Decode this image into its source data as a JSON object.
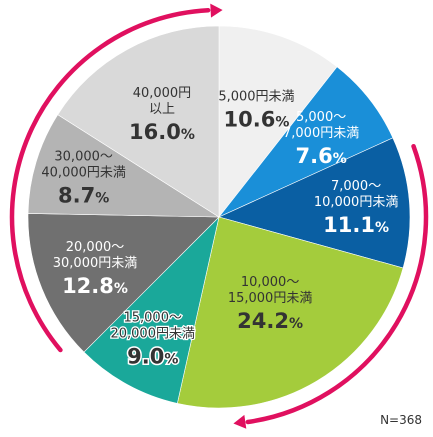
{
  "chart_data": {
    "type": "pie",
    "slices": [
      {
        "label_lines": [
          "5,000円未満"
        ],
        "value": 10.6,
        "color": "#f0f0f0",
        "text_color": "#333333",
        "stroke_text": false
      },
      {
        "label_lines": [
          "5,000～",
          "7,000円未満"
        ],
        "value": 7.6,
        "color": "#1a8fd8",
        "text_color": "#ffffff",
        "stroke_text": false
      },
      {
        "label_lines": [
          "7,000～",
          "10,000円未満"
        ],
        "value": 11.1,
        "color": "#0a5fa3",
        "text_color": "#ffffff",
        "stroke_text": false
      },
      {
        "label_lines": [
          "10,000～",
          "15,000円未満"
        ],
        "value": 24.2,
        "color": "#a4cc3c",
        "text_color": "#333333",
        "stroke_text": false
      },
      {
        "label_lines": [
          "15,000～",
          "20,000円未満"
        ],
        "value": 9.0,
        "color": "#1aa89a",
        "text_color": "#333333",
        "stroke_text": true
      },
      {
        "label_lines": [
          "20,000～",
          "30,000円未満"
        ],
        "value": 12.8,
        "color": "#707070",
        "text_color": "#ffffff",
        "stroke_text": false
      },
      {
        "label_lines": [
          "30,000～",
          "40,000円未満"
        ],
        "value": 8.7,
        "color": "#b4b4b4",
        "text_color": "#333333",
        "stroke_text": false
      },
      {
        "label_lines": [
          "40,000円",
          "以上"
        ],
        "value": 16.0,
        "color": "#d9d9d9",
        "text_color": "#333333",
        "stroke_text": false
      }
    ],
    "unit": "%",
    "note": "N=368",
    "arrow_color": "#e0105f"
  }
}
